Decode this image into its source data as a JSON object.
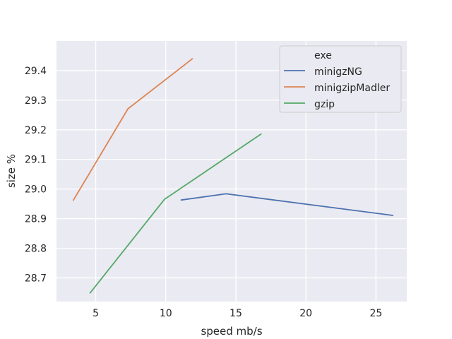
{
  "chart_data": {
    "type": "line",
    "xlabel": "speed mb/s",
    "ylabel": "size %",
    "xlim": [
      2.2,
      27.2
    ],
    "ylim": [
      28.62,
      29.5
    ],
    "x_ticks": [
      5,
      10,
      15,
      20,
      25
    ],
    "y_ticks": [
      28.7,
      28.8,
      28.9,
      29.0,
      29.1,
      29.2,
      29.3,
      29.4
    ],
    "x_tick_labels": [
      "5",
      "10",
      "15",
      "20",
      "25"
    ],
    "y_tick_labels": [
      "28.7",
      "28.8",
      "28.9",
      "29.0",
      "29.1",
      "29.2",
      "29.3",
      "29.4"
    ],
    "grid": true,
    "legend": {
      "title": "exe",
      "placement": "top-right"
    },
    "series": [
      {
        "name": "minigzNG",
        "color": "#4c72b0",
        "points": [
          {
            "x": 11.1,
            "y": 28.963
          },
          {
            "x": 14.3,
            "y": 28.984
          },
          {
            "x": 26.2,
            "y": 28.911
          }
        ]
      },
      {
        "name": "minigzipMadler",
        "color": "#dd8452",
        "points": [
          {
            "x": 3.4,
            "y": 28.962
          },
          {
            "x": 7.3,
            "y": 29.271
          },
          {
            "x": 11.9,
            "y": 29.44
          }
        ]
      },
      {
        "name": "gzip",
        "color": "#55a868",
        "points": [
          {
            "x": 4.6,
            "y": 28.649
          },
          {
            "x": 9.9,
            "y": 28.965
          },
          {
            "x": 16.8,
            "y": 29.186
          }
        ]
      }
    ]
  }
}
